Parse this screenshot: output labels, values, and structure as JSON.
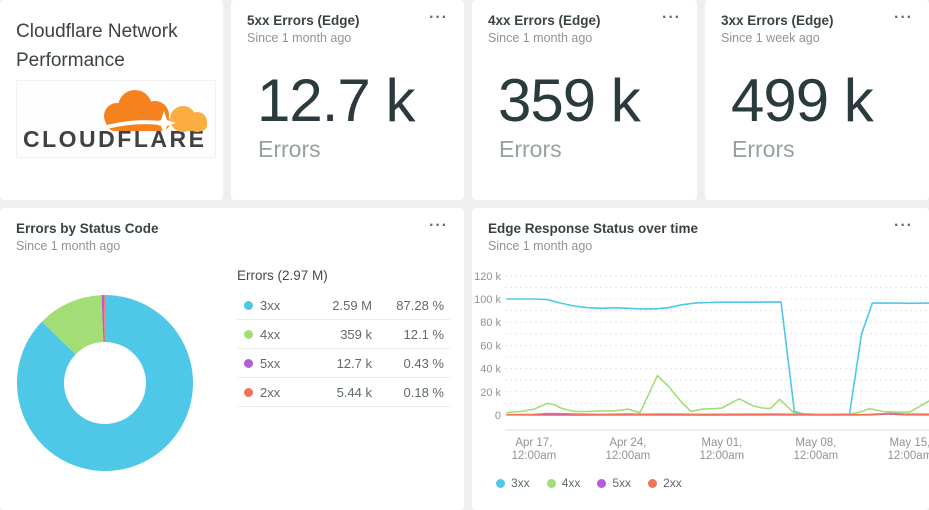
{
  "menu_glyph": "···",
  "palette": {
    "c3xx": "#4ec8e6",
    "c4xx": "#a2dd76",
    "c5xx": "#b45ed6",
    "c2xx": "#f0735c",
    "accent_orange": "#f6821f",
    "accent_orange_light": "#fbad41"
  },
  "title_card": {
    "title": "Cloudflare Network Performance",
    "logo_text": "CLOUDFLARE"
  },
  "stat_cards": [
    {
      "title": "5xx Errors (Edge)",
      "subtitle": "Since 1 month ago",
      "value": "12.7 k",
      "unit": "Errors"
    },
    {
      "title": "4xx Errors (Edge)",
      "subtitle": "Since 1 month ago",
      "value": "359 k",
      "unit": "Errors"
    },
    {
      "title": "3xx Errors (Edge)",
      "subtitle": "Since 1 week ago",
      "value": "499 k",
      "unit": "Errors"
    }
  ],
  "pie_card": {
    "title": "Errors by Status Code",
    "subtitle": "Since 1 month ago",
    "table_header": "Errors (2.97 M)",
    "rows": [
      {
        "label": "3xx",
        "value": "2.59 M",
        "percent": "87.28 %"
      },
      {
        "label": "4xx",
        "value": "359 k",
        "percent": "12.1 %"
      },
      {
        "label": "5xx",
        "value": "12.7 k",
        "percent": "0.43 %"
      },
      {
        "label": "2xx",
        "value": "5.44 k",
        "percent": "0.18 %"
      }
    ]
  },
  "line_card": {
    "title": "Edge Response Status over time",
    "subtitle": "Since 1 month ago"
  },
  "chart_data": [
    {
      "type": "pie",
      "title": "Errors by Status Code",
      "total_label": "Errors (2.97 M)",
      "donut": true,
      "slices": [
        {
          "label": "3xx",
          "value_text": "2.59 M",
          "percent": 87.28,
          "color": "#4ec8e6"
        },
        {
          "label": "4xx",
          "value_text": "359 k",
          "percent": 12.1,
          "color": "#a2dd76"
        },
        {
          "label": "5xx",
          "value_text": "12.7 k",
          "percent": 0.43,
          "color": "#b45ed6"
        },
        {
          "label": "2xx",
          "value_text": "5.44 k",
          "percent": 0.18,
          "color": "#f0735c"
        }
      ]
    },
    {
      "type": "line",
      "title": "Edge Response Status over time",
      "y_unit": "errors (values in thousands)",
      "ylim": [
        0,
        120
      ],
      "y_grid_step": 10,
      "y_label_step": 20,
      "grid": "dashed horizontal",
      "legend_position": "bottom-left",
      "x_domain_days": [
        0,
        31.4
      ],
      "x_ticks": [
        {
          "day": 2,
          "line1": "Apr 17,",
          "line2": "12:00am"
        },
        {
          "day": 9,
          "line1": "Apr 24,",
          "line2": "12:00am"
        },
        {
          "day": 16,
          "line1": "May 01,",
          "line2": "12:00am"
        },
        {
          "day": 23,
          "line1": "May 08,",
          "line2": "12:00am"
        },
        {
          "day": 30,
          "line1": "May 15,",
          "line2": "12:00am"
        }
      ],
      "series": [
        {
          "name": "3xx",
          "color": "#4ec8e6",
          "points": [
            [
              0,
              100
            ],
            [
              1,
              100
            ],
            [
              2,
              100
            ],
            [
              3,
              99.5
            ],
            [
              4,
              96.5
            ],
            [
              5,
              94
            ],
            [
              6,
              92.5
            ],
            [
              7,
              92
            ],
            [
              8,
              92.5
            ],
            [
              9,
              92
            ],
            [
              10,
              91.5
            ],
            [
              11,
              91.5
            ],
            [
              12,
              92.5
            ],
            [
              13,
              95
            ],
            [
              14,
              96.5
            ],
            [
              15,
              97
            ],
            [
              16,
              97.2
            ],
            [
              17,
              97.2
            ],
            [
              18,
              97.2
            ],
            [
              19,
              97.3
            ],
            [
              20.4,
              97.5
            ],
            [
              21.4,
              3
            ],
            [
              22,
              1
            ],
            [
              23,
              0.6
            ],
            [
              24,
              0.5
            ],
            [
              25.5,
              0.8
            ],
            [
              26.4,
              70
            ],
            [
              27.2,
              96.5
            ],
            [
              28,
              96.5
            ],
            [
              29,
              96.5
            ],
            [
              30,
              96.3
            ],
            [
              31.4,
              96.5
            ]
          ]
        },
        {
          "name": "4xx",
          "color": "#a2dd76",
          "points": [
            [
              0,
              2
            ],
            [
              1,
              3
            ],
            [
              2,
              5
            ],
            [
              3,
              10
            ],
            [
              3.5,
              9
            ],
            [
              4,
              6
            ],
            [
              5,
              3
            ],
            [
              6,
              3
            ],
            [
              7,
              3.5
            ],
            [
              8,
              3.5
            ],
            [
              9,
              5
            ],
            [
              9.9,
              2
            ],
            [
              11.2,
              34
            ],
            [
              12,
              25
            ],
            [
              13,
              11
            ],
            [
              13.7,
              3
            ],
            [
              14.5,
              5
            ],
            [
              15.5,
              5.5
            ],
            [
              16,
              6
            ],
            [
              17.3,
              14
            ],
            [
              18.3,
              8
            ],
            [
              19,
              6
            ],
            [
              19.6,
              5.5
            ],
            [
              20.3,
              13.5
            ],
            [
              21.4,
              1.5
            ],
            [
              22,
              0.4
            ],
            [
              23,
              0.3
            ],
            [
              24,
              0.3
            ],
            [
              25.5,
              0.5
            ],
            [
              26.4,
              3
            ],
            [
              27,
              5.5
            ],
            [
              28,
              3
            ],
            [
              29,
              2.5
            ],
            [
              30,
              2.5
            ],
            [
              31.4,
              12
            ]
          ]
        },
        {
          "name": "5xx",
          "color": "#b45ed6",
          "points": [
            [
              0,
              0.15
            ],
            [
              5,
              0.1
            ],
            [
              10,
              0.15
            ],
            [
              15,
              0.1
            ],
            [
              20,
              0.15
            ],
            [
              24,
              0.1
            ],
            [
              27,
              0.2
            ],
            [
              28.5,
              0.9
            ],
            [
              29.5,
              0.3
            ],
            [
              31.4,
              0.2
            ]
          ]
        },
        {
          "name": "2xx",
          "color": "#f0735c",
          "points": [
            [
              0,
              0.3
            ],
            [
              2,
              0.5
            ],
            [
              3,
              1.2
            ],
            [
              4,
              1.1
            ],
            [
              5,
              0.8
            ],
            [
              7,
              0.5
            ],
            [
              9,
              0.8
            ],
            [
              10,
              0.6
            ],
            [
              12,
              0.8
            ],
            [
              14,
              0.6
            ],
            [
              16,
              0.6
            ],
            [
              18,
              0.7
            ],
            [
              20,
              0.8
            ],
            [
              21.4,
              0.5
            ],
            [
              23,
              0.3
            ],
            [
              25,
              0.3
            ],
            [
              26.4,
              0.4
            ],
            [
              27,
              0.5
            ],
            [
              28.5,
              1.4
            ],
            [
              29.5,
              0.8
            ],
            [
              31.4,
              0.7
            ]
          ]
        }
      ]
    }
  ]
}
